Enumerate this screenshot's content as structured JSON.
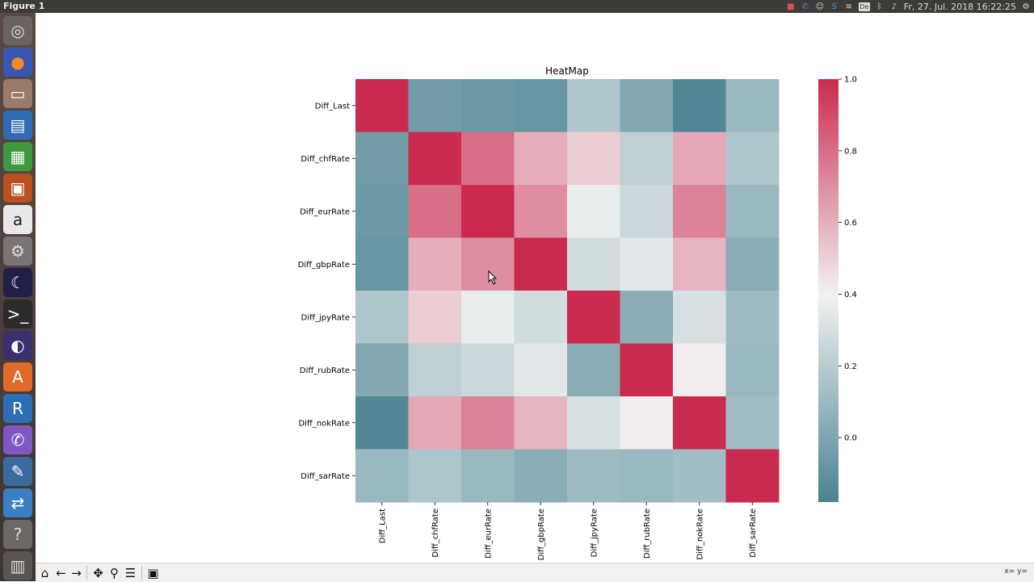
{
  "window": {
    "title": "Figure 1"
  },
  "topbar": {
    "clock": "Fr, 27. Jul. 2018 16:22:25",
    "keyboard_layout": "De"
  },
  "launcher": {
    "items": [
      {
        "name": "ubuntu-dash",
        "glyph": "◎",
        "color": "#dddddd",
        "bg": "#6b6360"
      },
      {
        "name": "firefox",
        "glyph": "●",
        "color": "#f58a1f",
        "bg": "#3a56b5"
      },
      {
        "name": "file-manager",
        "glyph": "▭",
        "color": "#ffffff",
        "bg": "#9a7a6a"
      },
      {
        "name": "writer",
        "glyph": "▤",
        "color": "#ffffff",
        "bg": "#2f6cb3"
      },
      {
        "name": "calc",
        "glyph": "▦",
        "color": "#ffffff",
        "bg": "#3e9a3e"
      },
      {
        "name": "impress",
        "glyph": "▣",
        "color": "#ffffff",
        "bg": "#b8501f"
      },
      {
        "name": "amazon",
        "glyph": "a",
        "color": "#222222",
        "bg": "#e8e8e8"
      },
      {
        "name": "settings",
        "glyph": "⚙",
        "color": "#dddddd",
        "bg": "#7a7574"
      },
      {
        "name": "stellarium",
        "glyph": "☾",
        "color": "#ffffff",
        "bg": "#1f1f4a"
      },
      {
        "name": "terminal",
        "glyph": ">_",
        "color": "#ffffff",
        "bg": "#2c2c2c"
      },
      {
        "name": "eclipse",
        "glyph": "◐",
        "color": "#ffffff",
        "bg": "#3b2f70"
      },
      {
        "name": "software-center",
        "glyph": "A",
        "color": "#ffffff",
        "bg": "#e06a2a"
      },
      {
        "name": "r-studio",
        "glyph": "R",
        "color": "#ffffff",
        "bg": "#2c6fb4"
      },
      {
        "name": "viber",
        "glyph": "✆",
        "color": "#ffffff",
        "bg": "#7e57c2"
      },
      {
        "name": "pen-tool",
        "glyph": "✎",
        "color": "#ffffff",
        "bg": "#3b6a9e"
      },
      {
        "name": "network-tool",
        "glyph": "⇄",
        "color": "#ffffff",
        "bg": "#3a7fc4"
      },
      {
        "name": "help",
        "glyph": "?",
        "color": "#dddddd",
        "bg": "#6c6866"
      },
      {
        "name": "trash",
        "glyph": "▥",
        "color": "#dddddd",
        "bg": "#5a5553"
      }
    ]
  },
  "chart_data": {
    "type": "heatmap",
    "title": "HeatMap",
    "rows": [
      "Diff_Last",
      "Diff_chfRate",
      "Diff_eurRate",
      "Diff_gbpRate",
      "Diff_jpyRate",
      "Diff_rubRate",
      "Diff_nokRate",
      "Diff_sarRate"
    ],
    "columns": [
      "Diff_Last",
      "Diff_chfRate",
      "Diff_eurRate",
      "Diff_gbpRate",
      "Diff_jpyRate",
      "Diff_rubRate",
      "Diff_nokRate",
      "Diff_sarRate"
    ],
    "values": [
      [
        1.0,
        -0.08,
        -0.1,
        -0.11,
        0.07,
        -0.04,
        -0.16,
        0.02
      ],
      [
        -0.08,
        1.0,
        0.74,
        0.5,
        0.38,
        0.11,
        0.52,
        0.07
      ],
      [
        -0.1,
        0.74,
        1.0,
        0.62,
        0.22,
        0.14,
        0.66,
        0.02
      ],
      [
        -0.11,
        0.5,
        0.62,
        1.0,
        0.16,
        0.2,
        0.47,
        -0.02
      ],
      [
        0.07,
        0.38,
        0.22,
        0.16,
        1.0,
        -0.02,
        0.17,
        0.03
      ],
      [
        -0.04,
        0.11,
        0.14,
        0.2,
        -0.02,
        1.0,
        0.26,
        0.02
      ],
      [
        -0.16,
        0.52,
        0.66,
        0.47,
        0.17,
        0.26,
        1.0,
        0.04
      ],
      [
        0.02,
        0.07,
        0.02,
        -0.02,
        0.03,
        0.02,
        0.04,
        1.0
      ]
    ],
    "vmin": -0.18,
    "vmax": 1.0,
    "colormap": {
      "low": "#4a8391",
      "mid": "#f2f2f2",
      "high": "#cb2a4f"
    },
    "colorbar": {
      "ticks": [
        "1.0",
        "0.8",
        "0.6",
        "0.4",
        "0.2",
        "0.0"
      ],
      "tick_values": [
        1.0,
        0.8,
        0.6,
        0.4,
        0.2,
        0.0
      ]
    }
  },
  "toolbar": {
    "buttons": [
      {
        "name": "home-button",
        "glyph": "⌂"
      },
      {
        "name": "back-button",
        "glyph": "←"
      },
      {
        "name": "forward-button",
        "glyph": "→"
      },
      {
        "name": "pan-button",
        "glyph": "✥"
      },
      {
        "name": "zoom-button",
        "glyph": "⚲"
      },
      {
        "name": "configure-subplots-button",
        "glyph": "☰"
      },
      {
        "name": "save-button",
        "glyph": "▣"
      }
    ],
    "coords_label": "x= y="
  }
}
